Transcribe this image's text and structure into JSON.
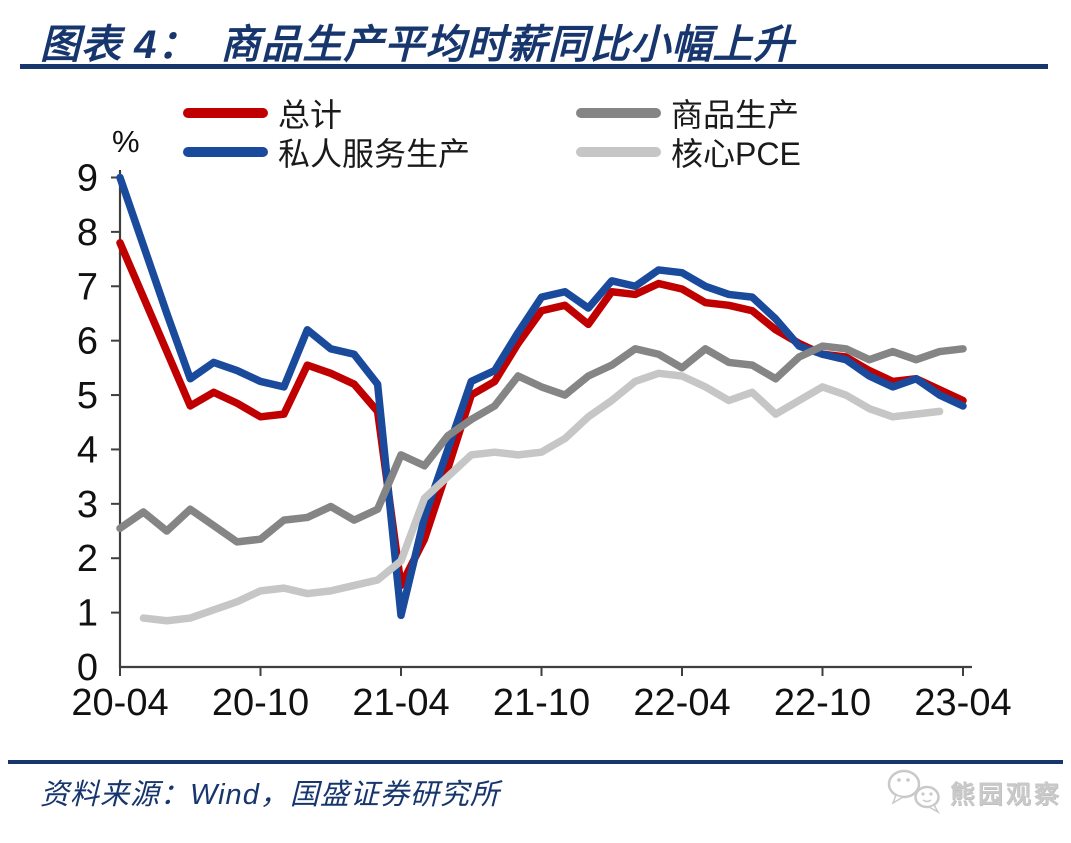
{
  "header": {
    "figure_label": "图表 4：",
    "title": "商品生产平均时薪同比小幅上升"
  },
  "legend": {
    "items": [
      {
        "label": "总计",
        "color": "#c00000"
      },
      {
        "label": "私人服务生产",
        "color": "#1a4a9c"
      },
      {
        "label": "商品生产",
        "color": "#858585"
      },
      {
        "label": "核心PCE",
        "color": "#c6c6c6"
      }
    ]
  },
  "footer": {
    "source": "资料来源：Wind，国盛证券研究所",
    "watermark": "熊园观察"
  },
  "colors": {
    "accent_navy": "#17366e",
    "axis": "#3f3f3f",
    "watermark_gray": "#c9c9c9"
  },
  "chart_data": {
    "type": "line",
    "title": "商品生产平均时薪同比小幅上升",
    "ylabel": "%",
    "grid": false,
    "legend_position": "top",
    "ylim": [
      0,
      9
    ],
    "ytick_step": 1,
    "x_tick_step": 6,
    "x_tick_labels": [
      "20-04",
      "20-10",
      "21-04",
      "21-10",
      "22-04",
      "22-10",
      "23-04"
    ],
    "x_labels": [
      "20-04",
      "20-05",
      "20-06",
      "20-07",
      "20-08",
      "20-09",
      "20-10",
      "20-11",
      "20-12",
      "21-01",
      "21-02",
      "21-03",
      "21-04",
      "21-05",
      "21-06",
      "21-07",
      "21-08",
      "21-09",
      "21-10",
      "21-11",
      "21-12",
      "22-01",
      "22-02",
      "22-03",
      "22-04",
      "22-05",
      "22-06",
      "22-07",
      "22-08",
      "22-09",
      "22-10",
      "22-11",
      "22-12",
      "23-01",
      "23-02",
      "23-03",
      "23-04"
    ],
    "series": [
      {
        "id": "total",
        "name": "总计",
        "color": "#c00000",
        "values": [
          7.8,
          6.8,
          5.8,
          4.8,
          5.05,
          4.85,
          4.6,
          4.65,
          5.55,
          5.4,
          5.2,
          4.7,
          1.5,
          2.35,
          3.65,
          5.0,
          5.25,
          5.95,
          6.55,
          6.65,
          6.3,
          6.9,
          6.85,
          7.05,
          6.95,
          6.7,
          6.65,
          6.55,
          6.2,
          5.95,
          5.75,
          5.7,
          5.45,
          5.25,
          5.3,
          5.1,
          4.9
        ]
      },
      {
        "id": "private-services",
        "name": "私人服务生产",
        "color": "#1a4a9c",
        "values": [
          9.0,
          7.75,
          6.5,
          5.3,
          5.6,
          5.45,
          5.25,
          5.15,
          6.2,
          5.85,
          5.75,
          5.2,
          0.95,
          2.75,
          4.0,
          5.25,
          5.45,
          6.15,
          6.8,
          6.9,
          6.6,
          7.1,
          7.0,
          7.3,
          7.25,
          7.0,
          6.85,
          6.8,
          6.4,
          5.9,
          5.75,
          5.65,
          5.35,
          5.15,
          5.3,
          5.0,
          4.8
        ]
      },
      {
        "id": "goods-production",
        "name": "商品生产",
        "color": "#858585",
        "values": [
          2.55,
          2.85,
          2.5,
          2.9,
          2.6,
          2.3,
          2.35,
          2.7,
          2.75,
          2.95,
          2.7,
          2.9,
          3.9,
          3.7,
          4.25,
          4.55,
          4.8,
          5.35,
          5.15,
          5.0,
          5.35,
          5.55,
          5.85,
          5.75,
          5.5,
          5.85,
          5.6,
          5.55,
          5.3,
          5.7,
          5.9,
          5.85,
          5.65,
          5.8,
          5.65,
          5.8,
          5.85
        ]
      },
      {
        "id": "core-pce",
        "name": "核心PCE",
        "color": "#c6c6c6",
        "values": [
          null,
          0.9,
          0.85,
          0.9,
          1.05,
          1.2,
          1.4,
          1.45,
          1.35,
          1.4,
          1.5,
          1.6,
          1.95,
          3.1,
          3.5,
          3.9,
          3.95,
          3.9,
          3.95,
          4.2,
          4.6,
          4.9,
          5.25,
          5.4,
          5.35,
          5.15,
          4.9,
          5.05,
          4.65,
          4.9,
          5.15,
          5.0,
          4.75,
          4.6,
          4.65,
          4.7,
          null
        ]
      }
    ]
  }
}
